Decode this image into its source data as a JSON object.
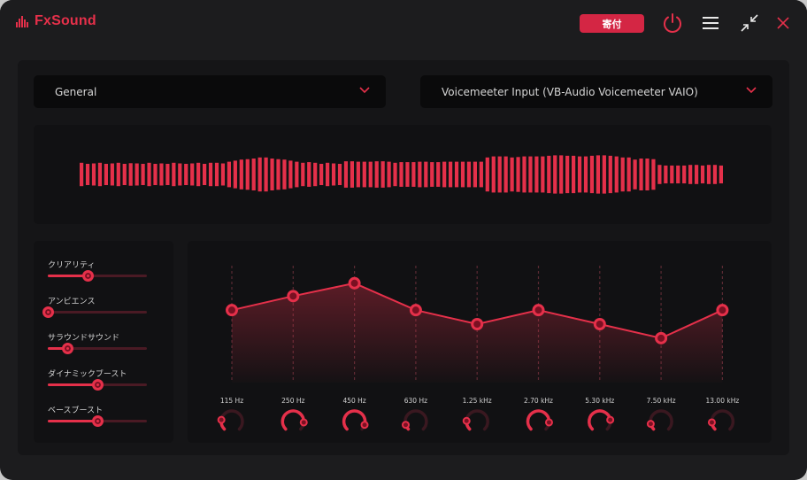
{
  "app": {
    "name": "FxSound"
  },
  "titlebar": {
    "donate_label": "寄付",
    "icons": [
      "power-icon",
      "menu-icon",
      "minimize-icon",
      "close-icon"
    ]
  },
  "preset": {
    "selected": "General"
  },
  "output_device": {
    "selected": "Voicemeeter Input (VB-Audio Voicemeeter VAIO)"
  },
  "colors": {
    "accent": "#e5304a",
    "background": "#1c1c1e",
    "panel": "#111113"
  },
  "effects": [
    {
      "label": "クリアリティ",
      "value": 0.4
    },
    {
      "label": "アンビエンス",
      "value": 0.0
    },
    {
      "label": "サラウンドサウンド",
      "value": 0.2
    },
    {
      "label": "ダイナミックブースト",
      "value": 0.5
    },
    {
      "label": "ベースブースト",
      "value": 0.5
    }
  ],
  "equalizer": {
    "bands": [
      {
        "freq": "115 Hz",
        "level": 0.62,
        "dial": 0.2
      },
      {
        "freq": "250 Hz",
        "level": 0.74,
        "dial": 0.85
      },
      {
        "freq": "450 Hz",
        "level": 0.85,
        "dial": 0.9
      },
      {
        "freq": "630 Hz",
        "level": 0.62,
        "dial": 0.1
      },
      {
        "freq": "1.25 kHz",
        "level": 0.5,
        "dial": 0.18
      },
      {
        "freq": "2.70 kHz",
        "level": 0.62,
        "dial": 0.85
      },
      {
        "freq": "5.30 kHz",
        "level": 0.5,
        "dial": 0.8
      },
      {
        "freq": "7.50 kHz",
        "level": 0.38,
        "dial": 0.12
      },
      {
        "freq": "13.00 kHz",
        "level": 0.62,
        "dial": 0.15
      }
    ]
  },
  "visualizer": {
    "levels": [
      0.55,
      0.5,
      0.52,
      0.55,
      0.5,
      0.52,
      0.55,
      0.5,
      0.53,
      0.52,
      0.5,
      0.55,
      0.5,
      0.52,
      0.5,
      0.55,
      0.52,
      0.5,
      0.52,
      0.55,
      0.5,
      0.55,
      0.55,
      0.52,
      0.6,
      0.65,
      0.7,
      0.72,
      0.75,
      0.8,
      0.8,
      0.75,
      0.72,
      0.7,
      0.65,
      0.6,
      0.55,
      0.58,
      0.55,
      0.5,
      0.55,
      0.52,
      0.5,
      0.62,
      0.62,
      0.6,
      0.6,
      0.6,
      0.62,
      0.62,
      0.6,
      0.55,
      0.58,
      0.58,
      0.58,
      0.6,
      0.6,
      0.58,
      0.58,
      0.6,
      0.6,
      0.6,
      0.6,
      0.6,
      0.6,
      0.6,
      0.8,
      0.85,
      0.85,
      0.85,
      0.8,
      0.82,
      0.85,
      0.85,
      0.85,
      0.85,
      0.88,
      0.9,
      0.9,
      0.88,
      0.88,
      0.85,
      0.85,
      0.88,
      0.9,
      0.9,
      0.88,
      0.85,
      0.8,
      0.8,
      0.7,
      0.75,
      0.75,
      0.72,
      0.45,
      0.42,
      0.42,
      0.42,
      0.42,
      0.45,
      0.45,
      0.42,
      0.45,
      0.45,
      0.42
    ]
  }
}
